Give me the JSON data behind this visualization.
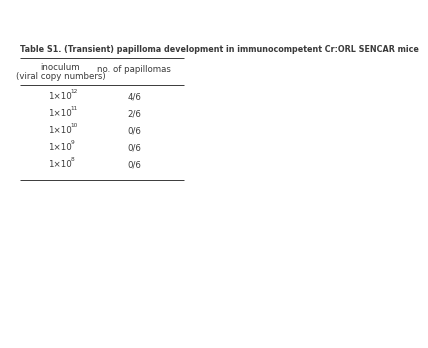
{
  "title": "Table S1. (Transient) papilloma development in immunocompetent Cr:ORL SENCAR mice",
  "col1_header_line1": "inoculum",
  "col1_header_line2": "(viral copy numbers)",
  "col2_header": "no. of papillomas",
  "rows": [
    {
      "exp": "12",
      "papillomas": "4/6"
    },
    {
      "exp": "11",
      "papillomas": "2/6"
    },
    {
      "exp": "10",
      "papillomas": "0/6"
    },
    {
      "exp": "9",
      "papillomas": "0/6"
    },
    {
      "exp": "8",
      "papillomas": "0/6"
    }
  ],
  "bg_color": "#ffffff",
  "text_color": "#3a3a3a",
  "title_fontsize": 5.8,
  "header_fontsize": 6.2,
  "cell_fontsize": 6.2,
  "fig_width": 3.2,
  "fig_height": 4.26
}
